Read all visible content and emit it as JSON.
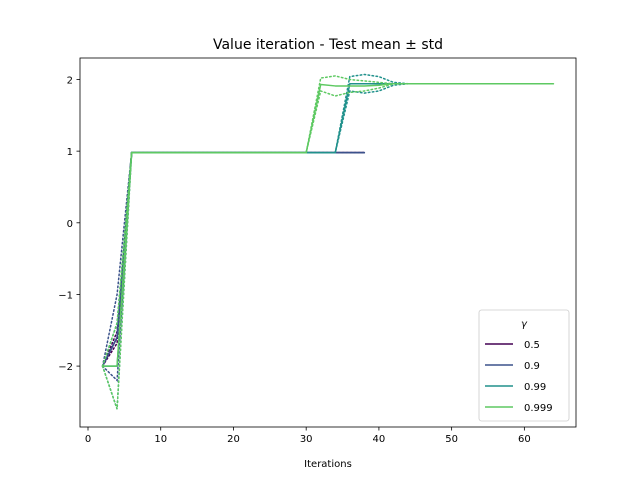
{
  "chart_data": {
    "type": "line",
    "title": "Value iteration - Test mean ± std",
    "xlabel": "Iterations",
    "ylabel": "",
    "xlim": [
      -1.1,
      67.1
    ],
    "ylim": [
      -2.85,
      2.3
    ],
    "xticks": [
      0,
      10,
      20,
      30,
      40,
      50,
      60
    ],
    "yticks": [
      -2,
      -1,
      0,
      1,
      2
    ],
    "xtick_labels": [
      "0",
      "10",
      "20",
      "30",
      "40",
      "50",
      "60"
    ],
    "ytick_labels": [
      "−2",
      "−1",
      "0",
      "1",
      "2"
    ],
    "grid": false,
    "legend": {
      "title": "γ",
      "position": "bottom-right"
    },
    "series": [
      {
        "name": "0.5",
        "color": "#440154",
        "x": [
          2,
          4,
          6,
          8,
          10,
          12,
          14,
          16,
          18,
          20,
          22,
          24,
          26,
          28,
          30,
          32,
          34,
          36,
          38
        ],
        "mean": [
          -2.0,
          -1.6,
          0.98,
          0.98,
          0.98,
          0.98,
          0.98,
          0.98,
          0.98,
          0.98,
          0.98,
          0.98,
          0.98,
          0.98,
          0.98,
          0.98,
          0.98,
          0.98,
          0.98
        ],
        "upper": [
          -2.0,
          -1.52,
          0.98,
          0.98,
          0.98,
          0.98,
          0.98,
          0.98,
          0.98,
          0.98,
          0.98,
          0.98,
          0.98,
          0.98,
          0.98,
          0.98,
          0.98,
          0.98,
          0.98
        ],
        "lower": [
          -2.0,
          -1.68,
          0.98,
          0.98,
          0.98,
          0.98,
          0.98,
          0.98,
          0.98,
          0.98,
          0.98,
          0.98,
          0.98,
          0.98,
          0.98,
          0.98,
          0.98,
          0.98,
          0.98
        ]
      },
      {
        "name": "0.9",
        "color": "#3b528b",
        "x": [
          2,
          4,
          6,
          8,
          10,
          12,
          14,
          16,
          18,
          20,
          22,
          24,
          26,
          28,
          30,
          32,
          34,
          36,
          38
        ],
        "mean": [
          -2.0,
          -1.6,
          0.98,
          0.98,
          0.98,
          0.98,
          0.98,
          0.98,
          0.98,
          0.98,
          0.98,
          0.98,
          0.98,
          0.98,
          0.98,
          0.98,
          0.98,
          0.98,
          0.98
        ],
        "upper": [
          -2.0,
          -1.0,
          0.98,
          0.98,
          0.98,
          0.98,
          0.98,
          0.98,
          0.98,
          0.98,
          0.98,
          0.98,
          0.98,
          0.98,
          0.98,
          0.98,
          0.98,
          0.98,
          0.98
        ],
        "lower": [
          -2.0,
          -2.2,
          0.98,
          0.98,
          0.98,
          0.98,
          0.98,
          0.98,
          0.98,
          0.98,
          0.98,
          0.98,
          0.98,
          0.98,
          0.98,
          0.98,
          0.98,
          0.98,
          0.98
        ]
      },
      {
        "name": "0.99",
        "color": "#21918c",
        "x": [
          2,
          4,
          6,
          8,
          10,
          12,
          14,
          16,
          18,
          20,
          22,
          24,
          26,
          28,
          30,
          32,
          34,
          36,
          38,
          40,
          42,
          44,
          46,
          48,
          50,
          52,
          54,
          56,
          58,
          60,
          62,
          64
        ],
        "mean": [
          -2.0,
          -2.0,
          0.98,
          0.98,
          0.98,
          0.98,
          0.98,
          0.98,
          0.98,
          0.98,
          0.98,
          0.98,
          0.98,
          0.98,
          0.98,
          0.98,
          0.98,
          1.94,
          1.94,
          1.94,
          1.94,
          1.94,
          1.94,
          1.94,
          1.94,
          1.94,
          1.94,
          1.94,
          1.94,
          1.94,
          1.94,
          1.94
        ],
        "upper": [
          -2.0,
          -1.4,
          0.98,
          0.98,
          0.98,
          0.98,
          0.98,
          0.98,
          0.98,
          0.98,
          0.98,
          0.98,
          0.98,
          0.98,
          0.98,
          0.98,
          0.98,
          2.04,
          2.07,
          2.04,
          1.96,
          1.94,
          1.94,
          1.94,
          1.94,
          1.94,
          1.94,
          1.94,
          1.94,
          1.94,
          1.94,
          1.94
        ],
        "lower": [
          -2.0,
          -2.6,
          0.98,
          0.98,
          0.98,
          0.98,
          0.98,
          0.98,
          0.98,
          0.98,
          0.98,
          0.98,
          0.98,
          0.98,
          0.98,
          0.98,
          0.98,
          1.84,
          1.81,
          1.84,
          1.92,
          1.94,
          1.94,
          1.94,
          1.94,
          1.94,
          1.94,
          1.94,
          1.94,
          1.94,
          1.94,
          1.94
        ]
      },
      {
        "name": "0.999",
        "color": "#5ec962",
        "x": [
          2,
          4,
          6,
          8,
          10,
          12,
          14,
          16,
          18,
          20,
          22,
          24,
          26,
          28,
          30,
          32,
          34,
          36,
          38,
          40,
          42,
          44,
          46,
          48,
          50,
          52,
          54,
          56,
          58,
          60,
          62,
          64
        ],
        "mean": [
          -2.0,
          -2.0,
          0.98,
          0.98,
          0.98,
          0.98,
          0.98,
          0.98,
          0.98,
          0.98,
          0.98,
          0.98,
          0.98,
          0.98,
          0.98,
          1.93,
          1.91,
          1.91,
          1.91,
          1.92,
          1.94,
          1.94,
          1.94,
          1.94,
          1.94,
          1.94,
          1.94,
          1.94,
          1.94,
          1.94,
          1.94,
          1.94
        ],
        "upper": [
          -2.0,
          -1.4,
          0.98,
          0.98,
          0.98,
          0.98,
          0.98,
          0.98,
          0.98,
          0.98,
          0.98,
          0.98,
          0.98,
          0.98,
          0.98,
          2.02,
          2.05,
          2.0,
          1.98,
          1.96,
          1.94,
          1.94,
          1.94,
          1.94,
          1.94,
          1.94,
          1.94,
          1.94,
          1.94,
          1.94,
          1.94,
          1.94
        ],
        "lower": [
          -2.0,
          -2.6,
          0.98,
          0.98,
          0.98,
          0.98,
          0.98,
          0.98,
          0.98,
          0.98,
          0.98,
          0.98,
          0.98,
          0.98,
          0.98,
          1.84,
          1.77,
          1.82,
          1.84,
          1.88,
          1.94,
          1.94,
          1.94,
          1.94,
          1.94,
          1.94,
          1.94,
          1.94,
          1.94,
          1.94,
          1.94,
          1.94
        ]
      }
    ]
  }
}
